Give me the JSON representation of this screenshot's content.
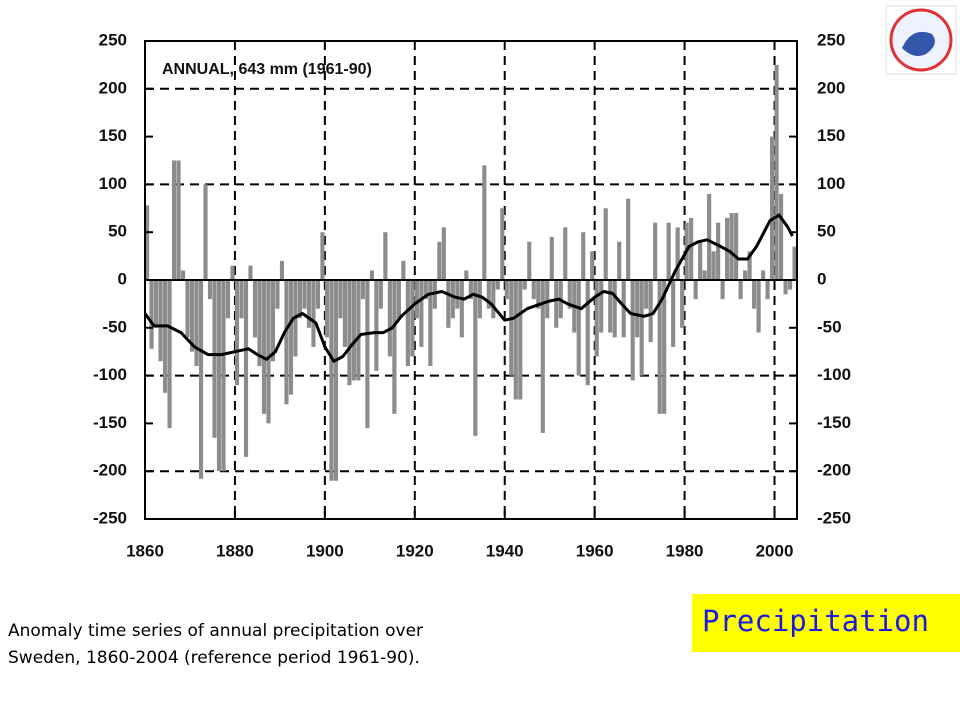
{
  "chart_data": {
    "type": "bar",
    "annotation": "ANNUAL, 643 mm (1961-90)",
    "xlim": [
      1860,
      2005
    ],
    "ylim": [
      -250,
      250
    ],
    "y2lim": [
      -250,
      250
    ],
    "xticks": [
      1860,
      1880,
      1900,
      1920,
      1940,
      1960,
      1980,
      2000
    ],
    "yticks": [
      -250,
      -200,
      -150,
      -100,
      -50,
      0,
      50,
      100,
      150,
      200,
      250
    ],
    "y2ticks": [
      -250,
      -200,
      -150,
      -100,
      -50,
      0,
      50,
      100,
      150,
      200,
      250
    ],
    "grid": true,
    "series": [
      {
        "type": "bar",
        "color": "#8c8c8c",
        "x": [
          1860,
          1861,
          1862,
          1863,
          1864,
          1865,
          1866,
          1867,
          1868,
          1869,
          1870,
          1871,
          1872,
          1873,
          1874,
          1875,
          1876,
          1877,
          1878,
          1879,
          1880,
          1881,
          1882,
          1883,
          1884,
          1885,
          1886,
          1887,
          1888,
          1889,
          1890,
          1891,
          1892,
          1893,
          1894,
          1895,
          1896,
          1897,
          1898,
          1899,
          1900,
          1901,
          1902,
          1903,
          1904,
          1905,
          1906,
          1907,
          1908,
          1909,
          1910,
          1911,
          1912,
          1913,
          1914,
          1915,
          1916,
          1917,
          1918,
          1919,
          1920,
          1921,
          1922,
          1923,
          1924,
          1925,
          1926,
          1927,
          1928,
          1929,
          1930,
          1931,
          1932,
          1933,
          1934,
          1935,
          1936,
          1937,
          1938,
          1939,
          1940,
          1941,
          1942,
          1943,
          1944,
          1945,
          1946,
          1947,
          1948,
          1949,
          1950,
          1951,
          1952,
          1953,
          1954,
          1955,
          1956,
          1957,
          1958,
          1959,
          1960,
          1961,
          1962,
          1963,
          1964,
          1965,
          1966,
          1967,
          1968,
          1969,
          1970,
          1971,
          1972,
          1973,
          1974,
          1975,
          1976,
          1977,
          1978,
          1979,
          1980,
          1981,
          1982,
          1983,
          1984,
          1985,
          1986,
          1987,
          1988,
          1989,
          1990,
          1991,
          1992,
          1993,
          1994,
          1995,
          1996,
          1997,
          1998,
          1999,
          2000,
          2001,
          2002,
          2003,
          2004
        ],
        "values": [
          78,
          -72,
          -50,
          -85,
          -118,
          -155,
          125,
          125,
          10,
          -60,
          -75,
          -90,
          -208,
          100,
          -20,
          -165,
          -200,
          -200,
          -40,
          15,
          -110,
          -40,
          -185,
          15,
          -60,
          -90,
          -140,
          -150,
          -85,
          -30,
          20,
          -130,
          -120,
          -80,
          -40,
          -30,
          -50,
          -70,
          -30,
          50,
          -60,
          -210,
          -210,
          -40,
          -70,
          -110,
          -105,
          -105,
          -20,
          -155,
          10,
          -95,
          -30,
          50,
          -80,
          -140,
          -40,
          20,
          -90,
          -80,
          -40,
          -70,
          -20,
          -90,
          -30,
          40,
          55,
          -50,
          -40,
          -30,
          -60,
          10,
          -20,
          -163,
          -40,
          120,
          -30,
          -40,
          -10,
          75,
          -20,
          -100,
          -125,
          -125,
          -10,
          40,
          -20,
          -30,
          -160,
          -40,
          45,
          -50,
          -40,
          55,
          -30,
          -55,
          -100,
          50,
          -110,
          30,
          -80,
          -55,
          75,
          -55,
          -60,
          40,
          -60,
          85,
          -105,
          -60,
          -100,
          -30,
          -65,
          60,
          -140,
          -140,
          60,
          -70,
          55,
          -50,
          60,
          65,
          -20,
          40,
          10,
          90,
          30,
          60,
          -20,
          65,
          70,
          70,
          -20,
          10,
          30,
          -30,
          -55,
          10,
          -20,
          150,
          225,
          90,
          -15,
          -10,
          35
        ]
      },
      {
        "type": "line",
        "color": "#000000",
        "x": [
          1860,
          1862,
          1865,
          1868,
          1871,
          1874,
          1877,
          1880,
          1883,
          1885,
          1887,
          1889,
          1891,
          1893,
          1895,
          1898,
          1900,
          1902,
          1904,
          1906,
          1908,
          1911,
          1913,
          1915,
          1917,
          1920,
          1923,
          1926,
          1929,
          1931,
          1933,
          1935,
          1937,
          1940,
          1942,
          1945,
          1948,
          1950,
          1952,
          1954,
          1957,
          1960,
          1962,
          1964,
          1966,
          1968,
          1971,
          1973,
          1975,
          1978,
          1981,
          1983,
          1985,
          1988,
          1990,
          1992,
          1994,
          1996,
          1999,
          2001,
          2003,
          2004
        ],
        "values": [
          -35,
          -48,
          -48,
          -55,
          -70,
          -78,
          -78,
          -75,
          -72,
          -78,
          -83,
          -75,
          -55,
          -40,
          -35,
          -45,
          -70,
          -85,
          -80,
          -68,
          -57,
          -55,
          -55,
          -50,
          -38,
          -25,
          -15,
          -12,
          -18,
          -20,
          -15,
          -18,
          -25,
          -42,
          -40,
          -30,
          -25,
          -22,
          -20,
          -25,
          -30,
          -18,
          -12,
          -14,
          -25,
          -35,
          -38,
          -35,
          -20,
          10,
          35,
          40,
          42,
          35,
          30,
          22,
          22,
          35,
          62,
          68,
          55,
          46
        ]
      }
    ]
  },
  "caption": [
    "Anomaly time series of annual precipitation over",
    "Sweden, 1860-2004 (reference period 1961-90)."
  ],
  "label": "Precipitation"
}
